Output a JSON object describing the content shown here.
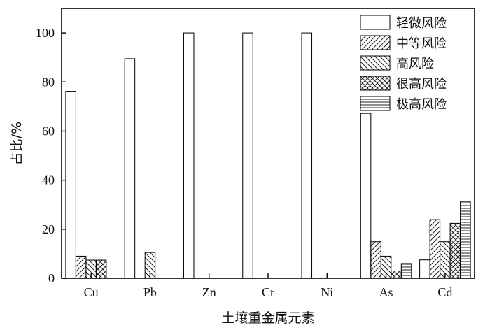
{
  "chart_data": {
    "type": "bar",
    "title": "",
    "xlabel": "土壤重金属元素",
    "ylabel": "占比/%",
    "ylim": [
      0,
      110
    ],
    "yticks": [
      0,
      20,
      40,
      60,
      80,
      100
    ],
    "categories": [
      "Cu",
      "Pb",
      "Zn",
      "Cr",
      "Ni",
      "As",
      "Cd"
    ],
    "series": [
      {
        "name": "轻微风险",
        "pattern": "none",
        "values": [
          76.2,
          89.5,
          100,
          100,
          100,
          67.2,
          7.5
        ]
      },
      {
        "name": "中等风险",
        "pattern": "forward-hatch",
        "values": [
          9.0,
          0,
          0,
          0,
          0,
          14.9,
          23.9
        ]
      },
      {
        "name": "高风险",
        "pattern": "back-hatch",
        "values": [
          7.4,
          10.5,
          0,
          0,
          0,
          9.0,
          14.9
        ]
      },
      {
        "name": "很高风险",
        "pattern": "cross-hatch",
        "values": [
          7.4,
          0,
          0,
          0,
          0,
          3.0,
          22.4
        ]
      },
      {
        "name": "极高风险",
        "pattern": "horizontal-lines",
        "values": [
          0,
          0,
          0,
          0,
          0,
          6.0,
          31.3
        ]
      }
    ],
    "legend_position": "top-right",
    "grid": false
  }
}
